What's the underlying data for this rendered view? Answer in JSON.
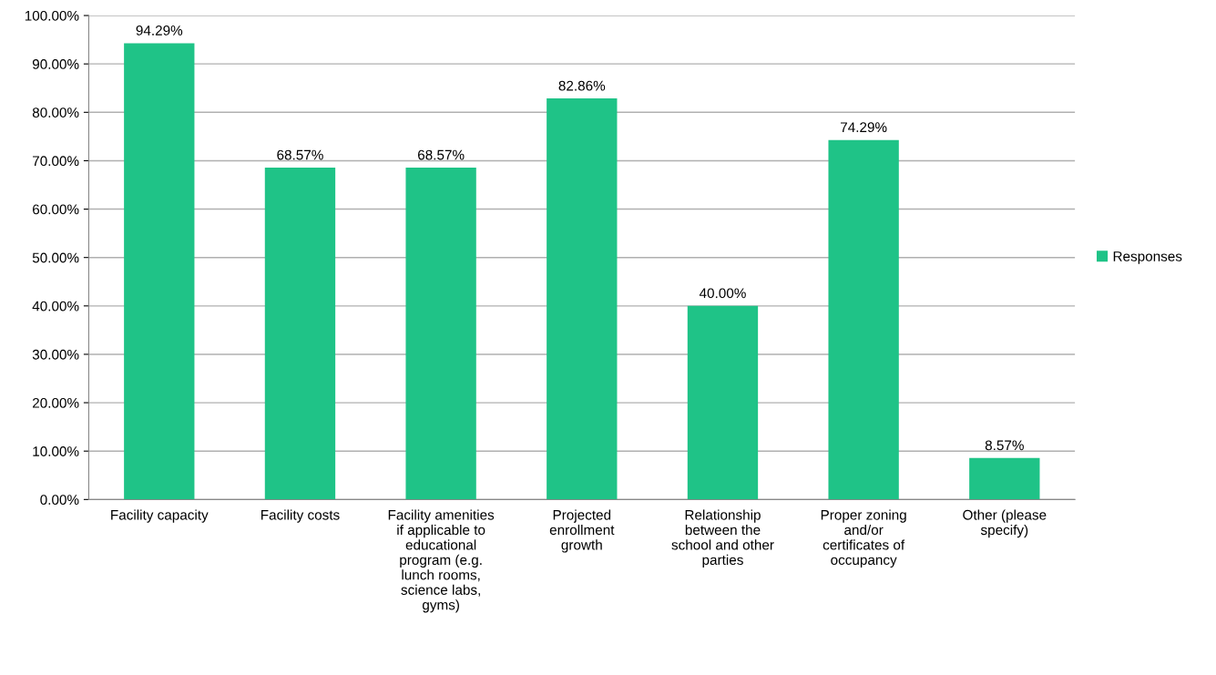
{
  "chart_data": {
    "type": "bar",
    "categories": [
      "Facility capacity",
      "Facility costs",
      "Facility amenities\nif applicable to\neducational\nprogram (e.g.\nlunch rooms,\nscience labs,\ngyms)",
      "Projected\nenrollment\ngrowth",
      "Relationship\nbetween the\nschool and other\nparties",
      "Proper zoning\nand/or\ncertificates of\noccupancy",
      "Other (please\nspecify)"
    ],
    "series": [
      {
        "name": "Responses",
        "color": "#1fc387",
        "values": [
          94.29,
          68.57,
          68.57,
          82.86,
          40.0,
          74.29,
          8.57
        ],
        "value_labels": [
          "94.29%",
          "68.57%",
          "68.57%",
          "82.86%",
          "40.00%",
          "74.29%",
          "8.57%"
        ]
      }
    ],
    "ylim": [
      0,
      100
    ],
    "yticks": [
      {
        "value": 0,
        "label": "0.00%"
      },
      {
        "value": 10,
        "label": "10.00%"
      },
      {
        "value": 20,
        "label": "20.00%"
      },
      {
        "value": 30,
        "label": "30.00%"
      },
      {
        "value": 40,
        "label": "40.00%"
      },
      {
        "value": 50,
        "label": "50.00%"
      },
      {
        "value": 60,
        "label": "60.00%"
      },
      {
        "value": 70,
        "label": "70.00%"
      },
      {
        "value": 80,
        "label": "80.00%"
      },
      {
        "value": 90,
        "label": "90.00%"
      },
      {
        "value": 100,
        "label": "100.00%"
      }
    ],
    "grid": "y",
    "legend": "right"
  }
}
